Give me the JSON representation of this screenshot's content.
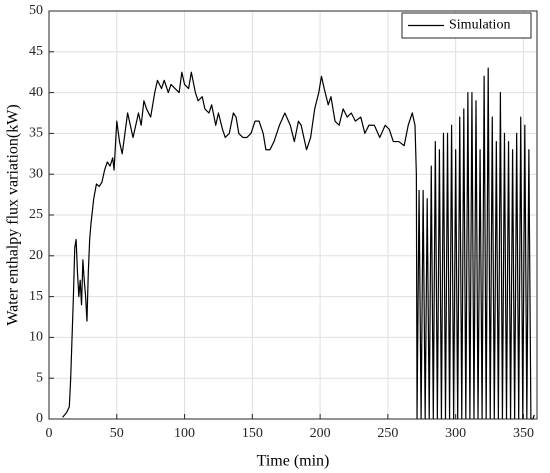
{
  "chart_data": {
    "type": "line",
    "xlabel": "Time (min)",
    "ylabel": "Water enthalpy flux variation(kW)",
    "xlim": [
      0,
      360
    ],
    "ylim": [
      0,
      50
    ],
    "xticks": [
      0,
      50,
      100,
      150,
      200,
      250,
      300,
      350
    ],
    "yticks": [
      0,
      5,
      10,
      15,
      20,
      25,
      30,
      35,
      40,
      45,
      50
    ],
    "grid": true,
    "legend": "upper right",
    "x": [
      10,
      13,
      15,
      16,
      18,
      19,
      20,
      21,
      22,
      23,
      24,
      25,
      26,
      27,
      28,
      29,
      30,
      31,
      33,
      35,
      37,
      39,
      41,
      43,
      45,
      47,
      48,
      50,
      52,
      54,
      56,
      58,
      60,
      62,
      64,
      66,
      68,
      70,
      72,
      75,
      78,
      80,
      83,
      85,
      88,
      90,
      93,
      96,
      98,
      100,
      103,
      105,
      108,
      110,
      113,
      115,
      118,
      120,
      123,
      125,
      128,
      130,
      133,
      136,
      138,
      140,
      143,
      146,
      149,
      152,
      155,
      158,
      160,
      163,
      166,
      170,
      174,
      178,
      181,
      184,
      186,
      190,
      193,
      196,
      199,
      201,
      203,
      206,
      208,
      211,
      214,
      217,
      220,
      223,
      226,
      230,
      233,
      236,
      240,
      244,
      248,
      251,
      254,
      258,
      262,
      265,
      268,
      270,
      271,
      271.5,
      273,
      274.5,
      276,
      277.5,
      279,
      280.5,
      282,
      283.5,
      285,
      286.5,
      288,
      289.5,
      291,
      292.5,
      294,
      295.5,
      297,
      298.5,
      300,
      301.5,
      303,
      304.5,
      306,
      307.5,
      309,
      310.5,
      312,
      313.5,
      315,
      316.5,
      318,
      319.5,
      321,
      322.5,
      324,
      325.5,
      327,
      328.5,
      330,
      331.5,
      333,
      334.5,
      336,
      337.5,
      339,
      340.5,
      342,
      343.5,
      345,
      346.5,
      348,
      349.5,
      351,
      352.5,
      354,
      355.5,
      357,
      358
    ],
    "series": [
      {
        "name": "Simulation",
        "color": "#000000",
        "values": [
          0.2,
          0.8,
          1.5,
          5,
          15,
          21,
          22,
          18,
          15,
          17,
          14,
          19.5,
          17,
          15,
          12,
          18,
          22,
          24,
          27,
          28.8,
          28.5,
          29,
          30.5,
          31.5,
          31,
          32,
          30.5,
          36.5,
          34,
          32.5,
          35,
          37.5,
          36,
          34.5,
          36,
          37.5,
          36,
          39,
          38,
          37,
          40,
          41.5,
          40.5,
          41.5,
          40,
          41,
          40.5,
          40,
          42.5,
          41,
          40.5,
          42.5,
          40,
          39,
          39.5,
          38,
          37.5,
          38.5,
          36,
          37.5,
          35.5,
          34.5,
          35,
          37.5,
          37,
          35,
          34.5,
          34.5,
          35,
          36.5,
          36.5,
          35,
          33,
          33,
          34,
          36,
          37.5,
          36,
          34,
          36.5,
          36,
          33,
          34.5,
          38,
          40,
          42,
          40.5,
          38.5,
          39.5,
          36.5,
          36,
          38,
          37,
          37.5,
          36.5,
          37,
          35,
          36,
          36,
          34.5,
          36,
          35.5,
          34,
          34,
          33.5,
          36,
          37.5,
          36,
          30,
          0,
          28,
          0,
          28,
          0,
          27,
          0,
          31,
          0,
          34,
          0,
          33,
          0,
          35,
          0,
          35,
          0,
          36,
          0,
          33,
          0,
          37,
          0,
          38,
          0,
          40,
          0,
          40,
          0,
          39,
          0,
          33,
          0,
          42,
          0,
          43,
          0,
          37,
          0,
          34,
          0,
          40,
          0,
          35,
          0,
          34,
          0,
          33,
          0,
          35,
          0,
          37,
          0,
          36,
          0,
          33,
          0,
          0,
          0.5
        ]
      }
    ]
  }
}
